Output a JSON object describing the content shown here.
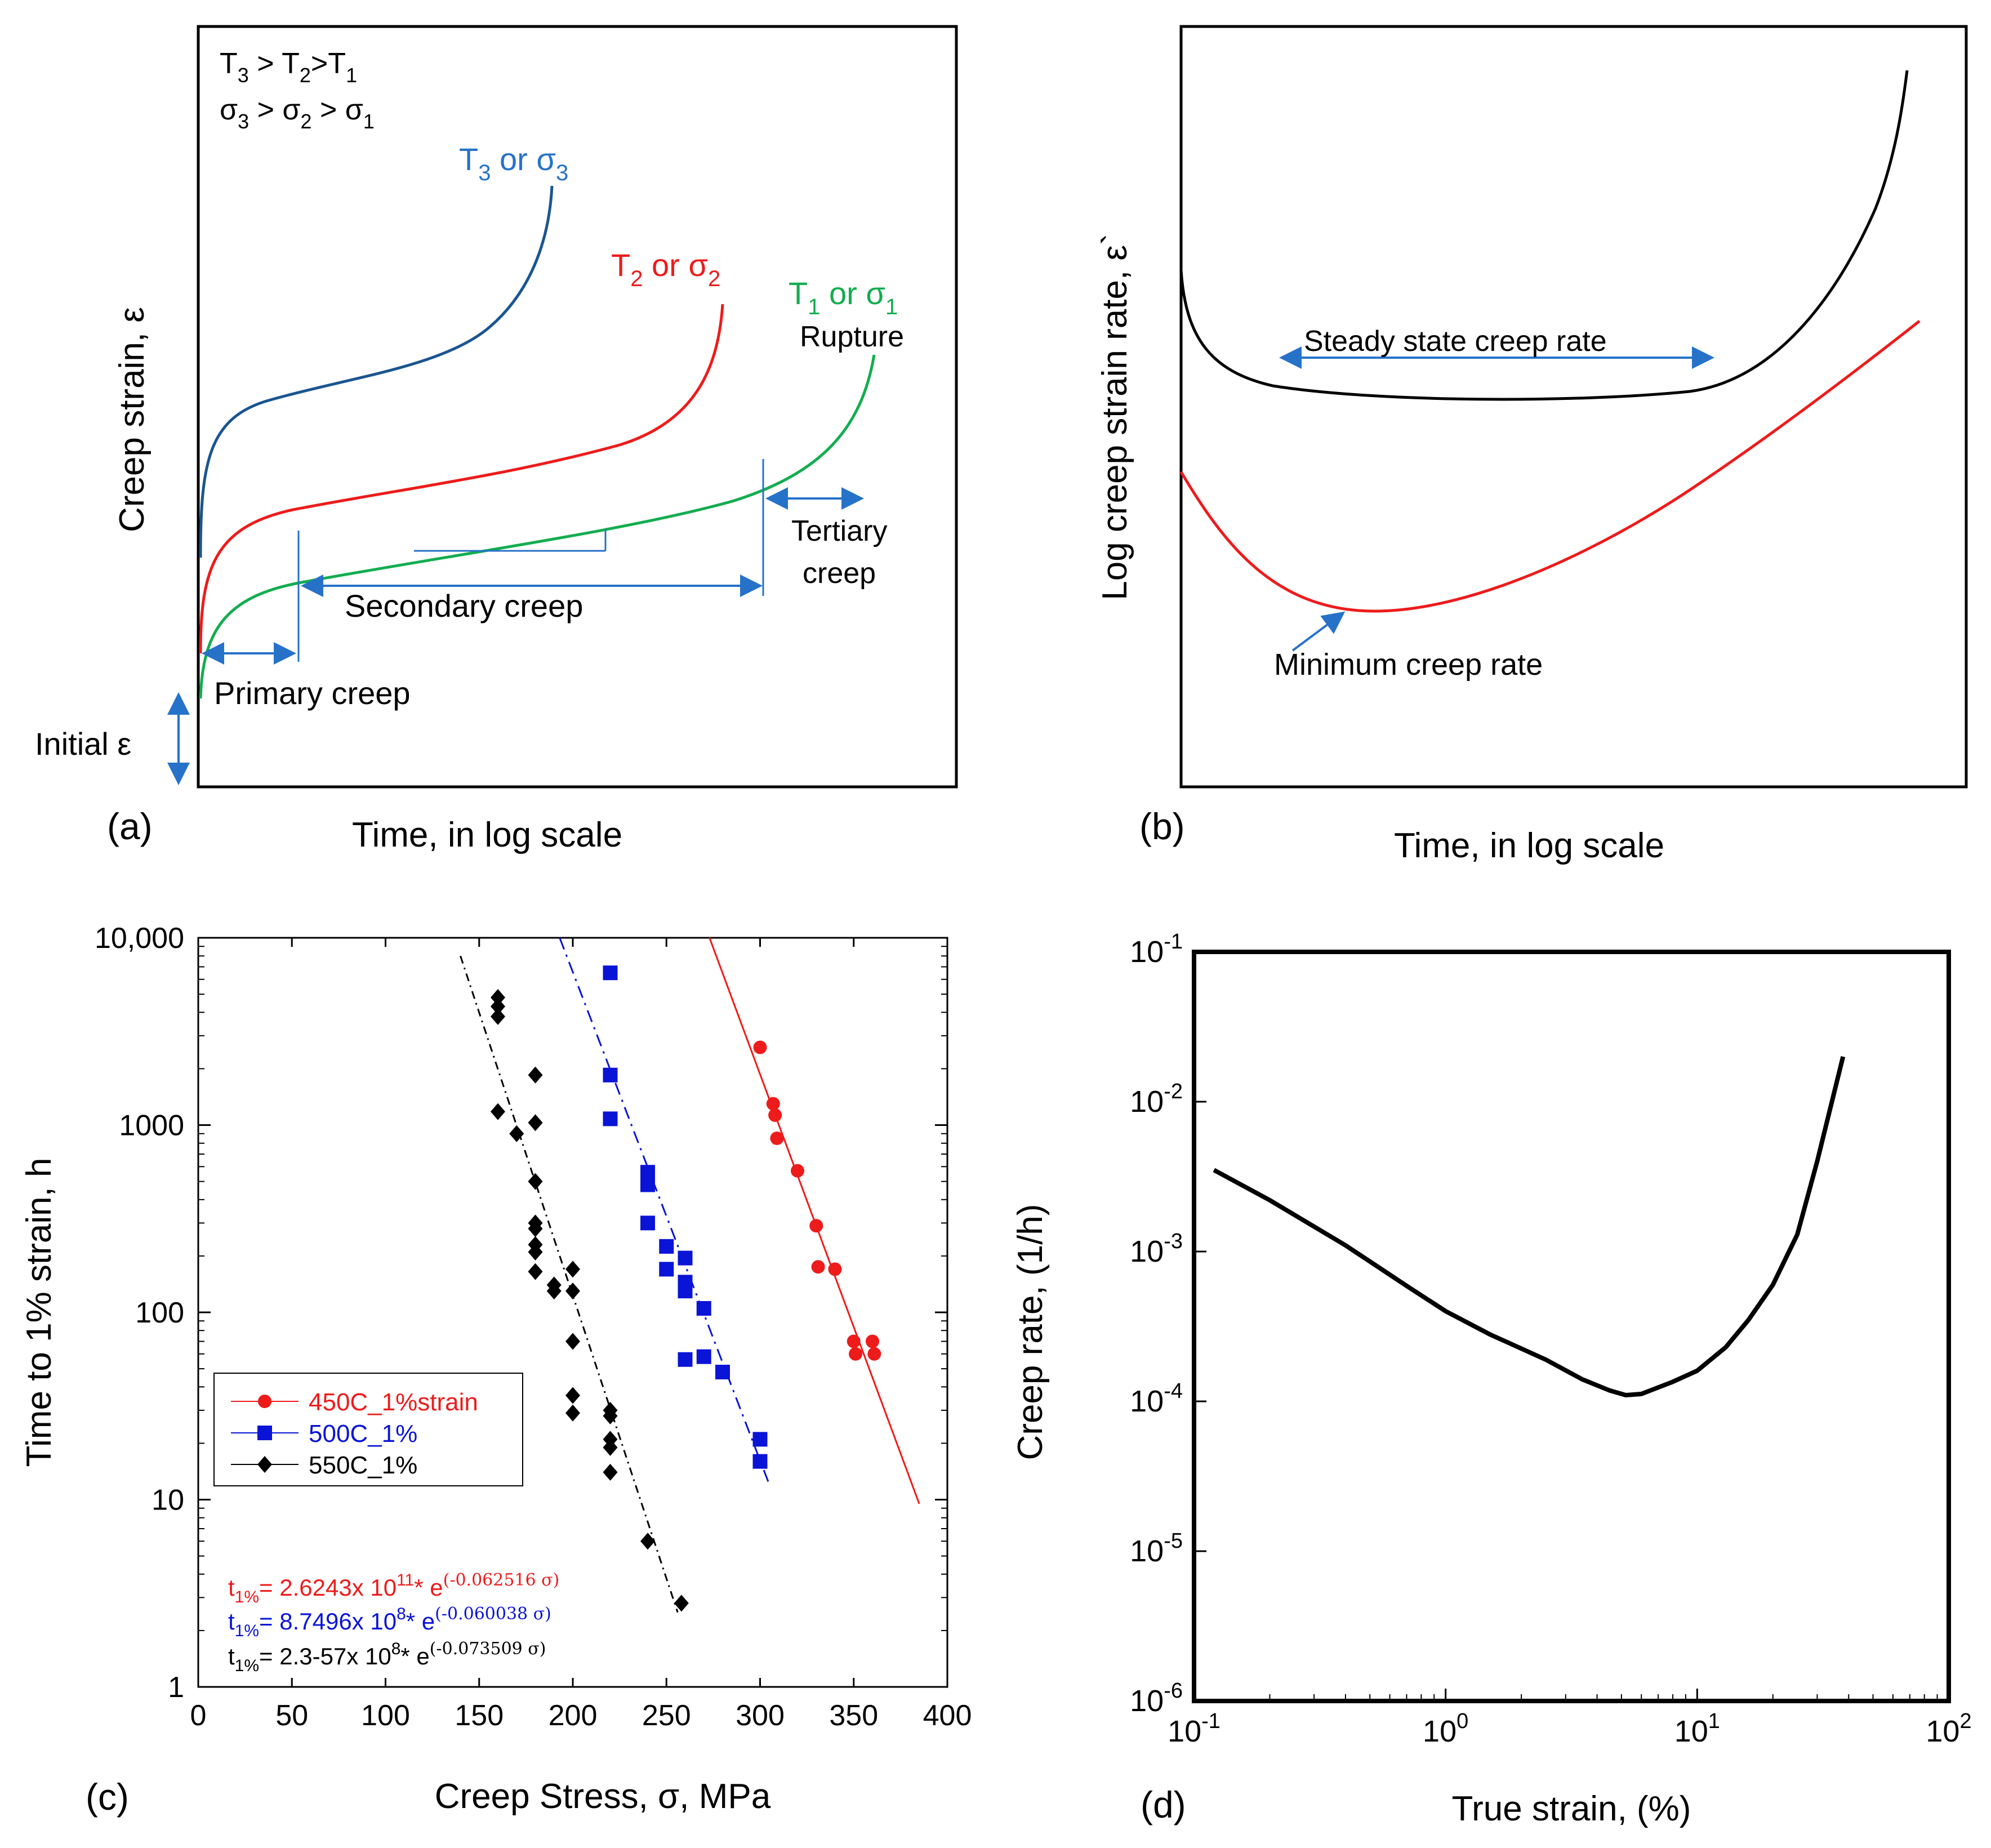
{
  "colors": {
    "blue": "#2672c9",
    "darkblue": "#1a5590",
    "red": "#ee1b1b",
    "green": "#12ad4f",
    "black": "#000000",
    "pblue": "#0a14d6"
  },
  "panel_a": {
    "label": "(a)",
    "xlabel": "Time, in log scale",
    "ylabel": "Creep strain,  ε",
    "cond_T": [
      "T",
      "3",
      " > T",
      "2",
      ">T",
      "1"
    ],
    "cond_s": [
      "σ",
      "3",
      " > σ",
      "2",
      " > σ",
      "1"
    ],
    "curve3": [
      "T",
      "3",
      " or σ",
      "3"
    ],
    "curve2": [
      "T",
      "2",
      " or σ",
      "2"
    ],
    "curve1": [
      "T",
      "1",
      " or σ",
      "1"
    ],
    "rupture": "Rupture",
    "tertiary_1": "Tertiary",
    "tertiary_2": "creep",
    "secondary": "Secondary creep",
    "primary": "Primary creep",
    "initial": "Initial  ε"
  },
  "panel_b": {
    "label": "(b)",
    "xlabel": "Time, in log scale",
    "ylabel": "Log creep strain rate,  ε`",
    "steady": "Steady state creep rate",
    "minimum": "Minimum creep rate"
  },
  "chart_data": [
    {
      "type": "scatter",
      "panel": "(c)",
      "xlabel": "Creep Stress, σ, MPa",
      "ylabel": "Time to 1% strain, h",
      "xlim": [
        0,
        400
      ],
      "ylim": [
        1,
        10000
      ],
      "yscale": "log",
      "xticks": [
        "0",
        "50",
        "100",
        "150",
        "200",
        "250",
        "300",
        "350",
        "400"
      ],
      "yticks": [
        "1",
        "10",
        "100",
        "1000",
        "10,000"
      ],
      "legend_location": "center-left",
      "series": [
        {
          "name": "450C_1%strain",
          "marker": "circle",
          "color": "#ee1b1b",
          "points": [
            [
              300,
              2600
            ],
            [
              307,
              1300
            ],
            [
              308,
              1130
            ],
            [
              309,
              850
            ],
            [
              320,
              570
            ],
            [
              330,
              290
            ],
            [
              331,
              175
            ],
            [
              340,
              170
            ],
            [
              350,
              70
            ],
            [
              351,
              60
            ],
            [
              360,
              70
            ],
            [
              361,
              60
            ]
          ],
          "fit": [
            [
              273,
              10000
            ],
            [
              385,
              9.5
            ]
          ]
        },
        {
          "name": "500C_1%",
          "marker": "square",
          "color": "#0a14d6",
          "points": [
            [
              220,
              6500
            ],
            [
              220,
              1850
            ],
            [
              220,
              1080
            ],
            [
              240,
              560
            ],
            [
              240,
              480
            ],
            [
              240,
              300
            ],
            [
              250,
              225
            ],
            [
              250,
              170
            ],
            [
              260,
              195
            ],
            [
              260,
              145
            ],
            [
              260,
              130
            ],
            [
              270,
              105
            ],
            [
              270,
              58
            ],
            [
              260,
              56
            ],
            [
              280,
              48
            ],
            [
              300,
              21
            ],
            [
              300,
              16
            ]
          ],
          "fit": [
            [
              193,
              10000
            ],
            [
              305,
              12
            ]
          ]
        },
        {
          "name": "550C_1%",
          "marker": "diamond",
          "color": "#000000",
          "points": [
            [
              160,
              4800
            ],
            [
              160,
              4300
            ],
            [
              160,
              3800
            ],
            [
              160,
              1180
            ],
            [
              170,
              900
            ],
            [
              180,
              1850
            ],
            [
              180,
              1030
            ],
            [
              180,
              500
            ],
            [
              180,
              300
            ],
            [
              180,
              280
            ],
            [
              180,
              230
            ],
            [
              180,
              210
            ],
            [
              180,
              165
            ],
            [
              190,
              140
            ],
            [
              190,
              130
            ],
            [
              200,
              170
            ],
            [
              200,
              130
            ],
            [
              200,
              70
            ],
            [
              200,
              36
            ],
            [
              200,
              29
            ],
            [
              220,
              30
            ],
            [
              220,
              28
            ],
            [
              220,
              21
            ],
            [
              220,
              19
            ],
            [
              220,
              14
            ],
            [
              240,
              6
            ],
            [
              258,
              2.8
            ]
          ],
          "fit": [
            [
              140,
              8000
            ],
            [
              256,
              2.5
            ]
          ]
        }
      ],
      "equations": [
        {
          "color": "#ee1b1b",
          "base": "t",
          "sub": "1%",
          "text": "= 2.6243x 10",
          "exp": "11",
          "tail": "* e",
          "tailexp": "(-0.062516 σ)"
        },
        {
          "color": "#0a14d6",
          "base": "t",
          "sub": "1%",
          "text": "= 8.7496x 10",
          "exp": "8",
          "tail": "* e",
          "tailexp": "(-0.060038 σ)"
        },
        {
          "color": "#000000",
          "base": "t",
          "sub": "1%",
          "text": "= 2.3-57x 10",
          "exp": "8",
          "tail": "* e",
          "tailexp": "(-0.073509 σ)"
        }
      ]
    },
    {
      "type": "line",
      "panel": "(d)",
      "xlabel": "True strain, (%)",
      "ylabel": "Creep rate, (1/h)",
      "xscale": "log",
      "yscale": "log",
      "xlim": [
        0.1,
        100
      ],
      "ylim": [
        1e-06,
        0.1
      ],
      "xticks": [
        {
          "base": "10",
          "exp": "-1"
        },
        {
          "base": "10",
          "exp": "0"
        },
        {
          "base": "10",
          "exp": "1"
        },
        {
          "base": "10",
          "exp": "2"
        }
      ],
      "yticks": [
        {
          "base": "10",
          "exp": "-1"
        },
        {
          "base": "10",
          "exp": "-2"
        },
        {
          "base": "10",
          "exp": "-3"
        },
        {
          "base": "10",
          "exp": "-4"
        },
        {
          "base": "10",
          "exp": "-5"
        },
        {
          "base": "10",
          "exp": "-6"
        }
      ],
      "x": [
        0.12,
        0.2,
        0.4,
        0.7,
        1.0,
        1.5,
        2.5,
        3.5,
        4.5,
        5.2,
        6.0,
        8.0,
        10,
        13,
        16,
        20,
        25,
        30,
        38
      ],
      "y": [
        0.0035,
        0.0022,
        0.0011,
        0.00059,
        0.0004,
        0.00028,
        0.00019,
        0.00014,
        0.000118,
        0.00011,
        0.000112,
        0.000135,
        0.00016,
        0.00023,
        0.00035,
        0.0006,
        0.0013,
        0.004,
        0.02
      ]
    }
  ]
}
